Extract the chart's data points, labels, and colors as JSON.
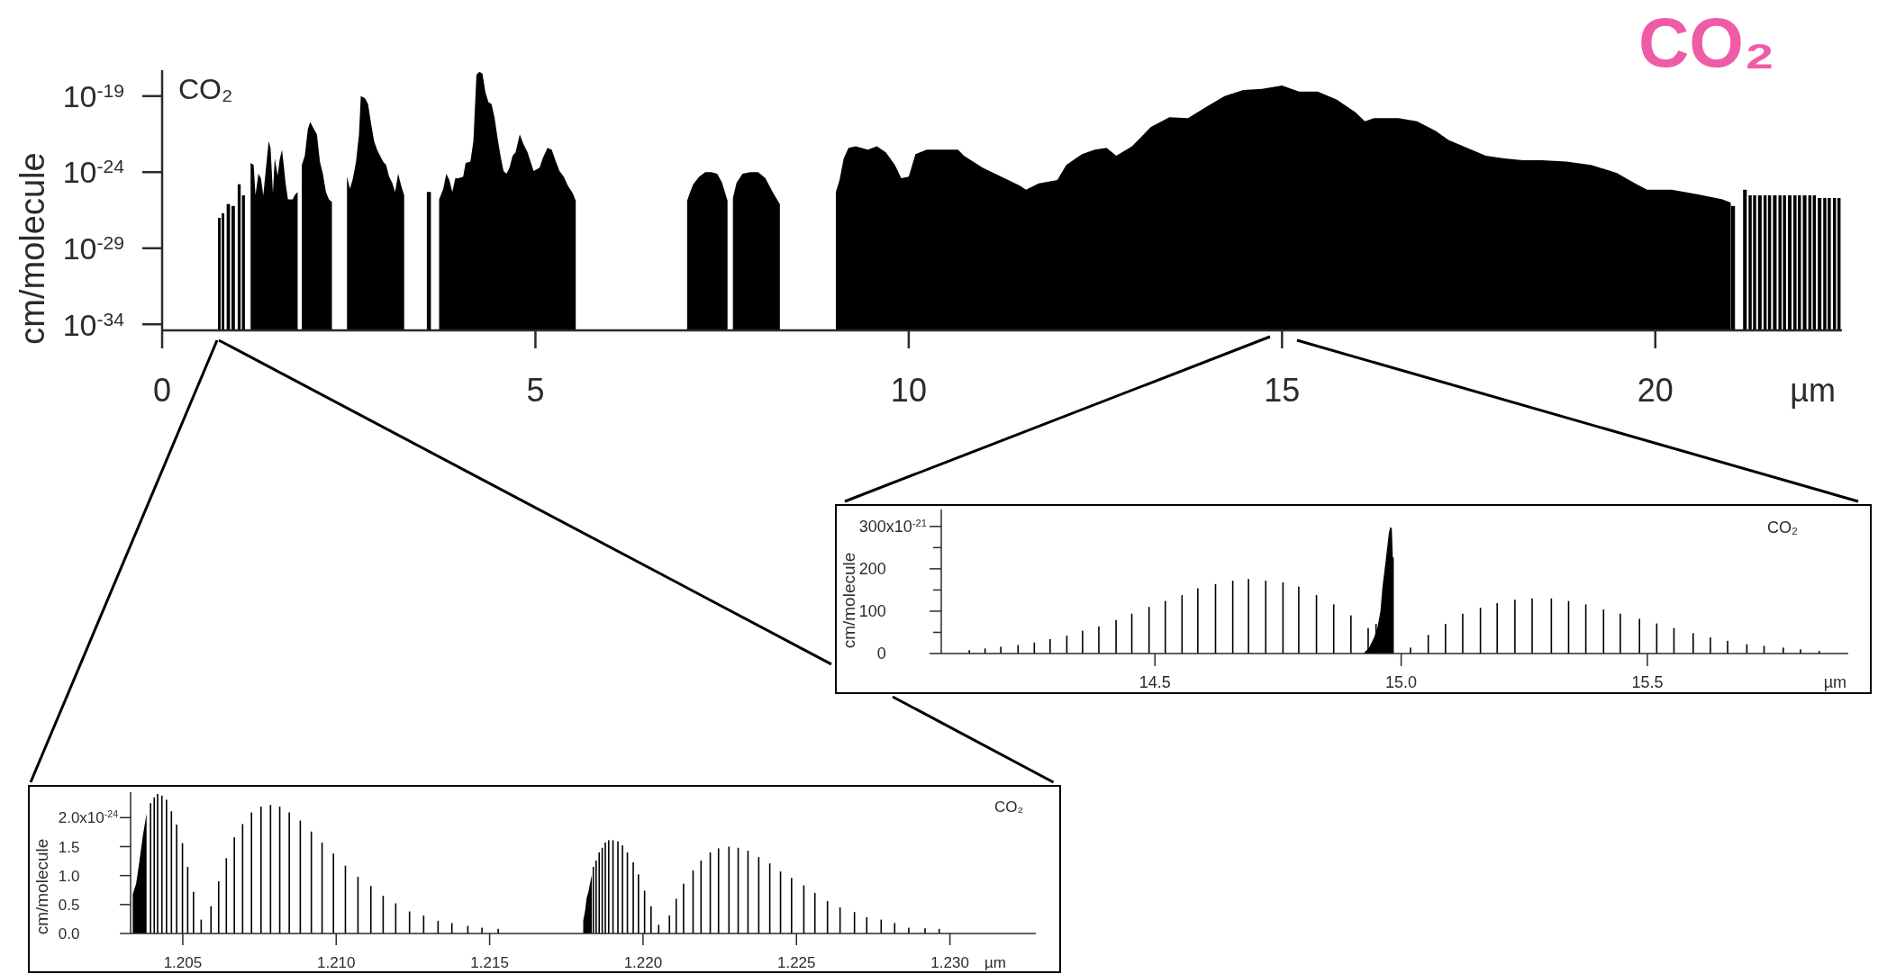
{
  "chart_data": [
    {
      "type": "area",
      "title": "CO₂",
      "xlabel": "µm",
      "ylabel": "cm/molecule",
      "annotations": [
        "CO₂"
      ],
      "log": true,
      "xlim": [
        0,
        22.5
      ],
      "xticks": [
        0,
        5,
        10,
        15,
        20
      ],
      "ylim": [
        4e-35,
        5e-18
      ],
      "yticks": [
        {
          "value": 1e-34,
          "label": "10$^{-34}$"
        },
        {
          "value": 1e-29,
          "label": "10$^{-29}$"
        },
        {
          "value": 1e-24,
          "label": "10$^{-24}$"
        },
        {
          "value": 1e-19,
          "label": "10$^{-19}$"
        }
      ],
      "series": [
        {
          "color": "#000000",
          "x": [
            1.185,
            1.226,
            1.25,
            1.29,
            1.323,
            1.355,
            1.387,
            1.427,
            1.452,
            1.484,
            1.508,
            1.548,
            1.573,
            1.605,
            1.629,
            1.653,
            1.685,
            1.75,
            1.774,
            1.815,
            1.843,
            1.871,
            1.911,
            1.952,
            1.984,
            2.032,
            2.073,
            2.113,
            2.153,
            2.194,
            2.234,
            2.274,
            2.37,
            2.476,
            2.516,
            2.556,
            2.597,
            2.637,
            2.661,
            2.718,
            2.758,
            2.798,
            2.839,
            2.879,
            2.919,
            2.96,
            3.0,
            3.04,
            3.081,
            3.121,
            3.161,
            3.202,
            3.242,
            3.45,
            3.71,
            3.766,
            3.806,
            3.847,
            3.887,
            3.927,
            3.968,
            4.032,
            4.065,
            4.129,
            4.169,
            4.21,
            4.25,
            4.29,
            4.331,
            4.371,
            4.411,
            4.452,
            4.492,
            4.532,
            4.573,
            4.613,
            4.653,
            4.694,
            4.734,
            4.79,
            4.839,
            4.895,
            4.935,
            4.976,
            5.056,
            5.097,
            5.161,
            5.218,
            5.274,
            5.323,
            5.379,
            5.435,
            5.5,
            5.54,
            6.3,
            7.032,
            7.073,
            7.113,
            7.194,
            7.274,
            7.355,
            7.435,
            7.5,
            7.573,
            7.61,
            7.645,
            7.694,
            7.774,
            7.879,
            7.984,
            8.081,
            8.177,
            8.274,
            8.6,
            9.024,
            9.073,
            9.129,
            9.194,
            9.29,
            9.452,
            9.573,
            9.694,
            9.815,
            9.9,
            10.0,
            10.09,
            10.24,
            10.66,
            10.74,
            10.99,
            11.24,
            11.49,
            11.57,
            11.74,
            11.99,
            12.11,
            12.32,
            12.49,
            12.65,
            12.78,
            12.99,
            13.24,
            13.49,
            13.74,
            13.99,
            14.23,
            14.48,
            14.73,
            15.0,
            15.23,
            15.48,
            15.73,
            15.98,
            16.11,
            16.23,
            16.56,
            16.81,
            17.06,
            17.23,
            17.48,
            17.73,
            17.98,
            18.23,
            18.48,
            18.81,
            19.14,
            19.48,
            19.73,
            19.89,
            20.22,
            20.56,
            20.89,
            21.01
          ],
          "values": [
            4e-24,
            3e-24,
            3e-26,
            8e-25,
            4e-25,
            3e-26,
            1.2e-24,
            1.1e-22,
            4e-23,
            4e-26,
            8e-24,
            6e-25,
            6e-24,
            3e-23,
            3e-24,
            2e-25,
            1.6e-26,
            1.6e-26,
            3e-26,
            5e-26,
            null,
            3e-24,
            1.2e-23,
            7e-22,
            2e-21,
            7e-22,
            3e-22,
            5e-24,
            8e-25,
            5e-26,
            1.6e-26,
            1.1e-26,
            null,
            5e-25,
            8e-26,
            4e-25,
            5e-24,
            3e-22,
            1e-19,
            7e-20,
            3e-20,
            1.7e-21,
            1.1e-22,
            3e-23,
            1.2e-23,
            5e-24,
            3e-24,
            5e-25,
            2e-25,
            5e-26,
            8e-25,
            1.3e-25,
            3e-26,
            null,
            1.6e-26,
            8e-26,
            8e-25,
            3e-25,
            5e-26,
            4e-25,
            4e-25,
            5e-25,
            4e-24,
            5e-24,
            1.1e-22,
            2.5e-18,
            4e-18,
            3e-18,
            1.7e-19,
            4e-20,
            3e-20,
            4e-21,
            1.8e-22,
            1.2e-23,
            1.2e-24,
            8e-25,
            2e-24,
            1.2e-23,
            2e-23,
            3e-22,
            7e-23,
            2e-23,
            5e-24,
            1.2e-24,
            2e-24,
            8e-24,
            4e-23,
            3e-23,
            5e-24,
            1.2e-24,
            5e-25,
            1.3e-25,
            4e-26,
            1.3e-26,
            null,
            1.3e-26,
            5e-26,
            1.6e-25,
            5e-25,
            1e-24,
            1e-24,
            8e-25,
            2e-25,
            1.3e-26,
            null,
            2e-26,
            2e-25,
            8e-25,
            1e-24,
            1e-24,
            4e-25,
            5e-26,
            8e-27,
            null,
            5e-26,
            3e-25,
            8e-24,
            4e-23,
            5e-23,
            3e-23,
            5e-23,
            2e-23,
            3e-24,
            4e-25,
            5e-25,
            1.5e-23,
            3e-23,
            3e-23,
            1.2e-23,
            2e-24,
            5e-25,
            1.3e-25,
            7e-26,
            1.8e-25,
            3e-25,
            3e-24,
            1.5e-23,
            3e-23,
            4e-23,
            1.2e-23,
            5e-23,
            9e-22,
            4e-21,
            3.5e-21,
            2e-20,
            1e-19,
            2.5e-19,
            3e-19,
            5e-19,
            2e-19,
            2e-19,
            6e-20,
            9e-21,
            2.2e-21,
            3.5e-21,
            3.5e-21,
            2.2e-21,
            5e-22,
            1.3e-22,
            4e-23,
            1.2e-23,
            8e-24,
            6e-24,
            6e-24,
            5e-24,
            3e-24,
            9e-25,
            1.8e-25,
            7e-26,
            7e-26,
            3.5e-26,
            1.7e-26,
            1e-26
          ]
        },
        {
          "type": "bar",
          "color": "#000000",
          "x": [
            0.766,
            0.815,
            0.887,
            0.952,
            1.032,
            1.089,
            3.573,
            21.04,
            21.2,
            21.27,
            21.33,
            21.4,
            21.47,
            21.53,
            21.6,
            21.67,
            21.73,
            21.8,
            21.87,
            21.93,
            22.0,
            22.07,
            22.13,
            22.2,
            22.27,
            22.33,
            22.4,
            22.46
          ],
          "values": [
            1e-27,
            2e-27,
            8e-27,
            6e-27,
            1.6e-25,
            3e-26,
            5e-26,
            6e-27,
            7e-26,
            3e-26,
            3e-26,
            3e-26,
            3e-26,
            3e-26,
            3e-26,
            3e-26,
            3e-26,
            3e-26,
            3e-26,
            3e-26,
            3e-26,
            3e-26,
            3e-26,
            2e-26,
            2e-26,
            2e-26,
            2e-26,
            2e-26
          ]
        }
      ]
    },
    {
      "type": "bar",
      "xlabel": "µm",
      "ylabel": "cm/molecule",
      "annotations": [
        "CO₂",
        "x10$^{-21}$"
      ],
      "xlim": [
        14.066,
        15.908
      ],
      "xticks": [
        14.5,
        {
          "value": 15,
          "label": "15.0"
        },
        15.5
      ],
      "ylim": [
        0,
        340
      ],
      "yticks": [
        0,
        {
          "value": 50,
          "label": null
        },
        100,
        {
          "value": 150,
          "label": null
        },
        200,
        {
          "value": 250,
          "label": null
        },
        300
      ],
      "series": [
        {
          "color": "#000000",
          "x": [
            14.123,
            14.155,
            14.187,
            14.222,
            14.255,
            14.287,
            14.321,
            14.353,
            14.386,
            14.421,
            14.453,
            14.488,
            14.521,
            14.555,
            14.587,
            14.623,
            14.658,
            14.69,
            14.725,
            14.76,
            14.792,
            14.828,
            14.863,
            14.898,
            14.933,
            14.949,
            15.019,
            15.055,
            15.09,
            15.125,
            15.161,
            15.195,
            15.231,
            15.266,
            15.305,
            15.34,
            15.375,
            15.411,
            15.445,
            15.484,
            15.519,
            15.554,
            15.593,
            15.628,
            15.663,
            15.702,
            15.737,
            15.776,
            15.811,
            15.849
          ],
          "values": [
            8,
            12,
            16,
            20,
            26,
            34,
            42,
            54,
            64,
            79,
            94,
            110,
            124,
            138,
            154,
            164,
            172,
            176,
            172,
            168,
            158,
            138,
            116,
            90,
            60,
            70,
            14,
            44,
            70,
            94,
            108,
            119,
            127,
            130,
            130,
            124,
            116,
            104,
            94,
            82,
            71,
            60,
            48,
            38,
            30,
            22,
            18,
            14,
            10,
            6
          ]
        },
        {
          "type": "area",
          "color": "#000000",
          "x": [
            14.925,
            14.935,
            14.945,
            14.952,
            14.958,
            14.962,
            14.967,
            14.971,
            14.975,
            14.978,
            14.981,
            14.983,
            14.985
          ],
          "values": [
            2,
            14,
            38,
            62,
            101,
            157,
            204,
            244,
            284,
            299,
            295,
            228,
            225
          ]
        }
      ]
    },
    {
      "type": "bar",
      "xlabel": "µm",
      "ylabel": "cm/molecule",
      "annotations": [
        "CO₂",
        "x10$^{-24}$"
      ],
      "xlim": [
        1.2033,
        1.2328
      ],
      "xticks": [
        1.205,
        {
          "value": 1.21,
          "label": "1.210"
        },
        1.215,
        {
          "value": 1.22,
          "label": "1.220"
        },
        1.225,
        {
          "value": 1.23,
          "label": "1.230"
        }
      ],
      "ylim": [
        0,
        2.44
      ],
      "yticks": [
        {
          "value": 0,
          "label": "0.0"
        },
        0.5,
        {
          "value": 1,
          "label": "1.0"
        },
        1.5,
        {
          "value": 2,
          "label": "2.0"
        }
      ],
      "series": [
        {
          "color": "#000000",
          "x": [
            1.20395,
            1.20407,
            1.20418,
            1.20432,
            1.20447,
            1.20463,
            1.2048,
            1.20499,
            1.20516,
            1.20535,
            1.2056,
            1.20592,
            1.20617,
            1.20642,
            1.20668,
            1.20695,
            1.20724,
            1.20755,
            1.20786,
            1.20816,
            1.20847,
            1.20883,
            1.20919,
            1.20954,
            1.20991,
            1.2103,
            1.21071,
            1.21113,
            1.21153,
            1.21194,
            1.21239,
            1.21285,
            1.21332,
            1.21377,
            1.21429,
            1.21475,
            1.21528,
            1.21838,
            1.21847,
            1.21857,
            1.21867,
            1.21877,
            1.21888,
            1.21902,
            1.21918,
            1.21933,
            1.21949,
            1.21968,
            1.21985,
            1.22005,
            1.22026,
            1.22051,
            1.22086,
            1.22108,
            1.22132,
            1.22163,
            1.22189,
            1.22219,
            1.22246,
            1.2228,
            1.2231,
            1.22342,
            1.22377,
            1.22413,
            1.22448,
            1.22484,
            1.22524,
            1.2256,
            1.22601,
            1.22642,
            1.22689,
            1.22729,
            1.22776,
            1.2282,
            1.22866,
            1.22919,
            1.22965
          ],
          "values": [
            2.25,
            2.35,
            2.41,
            2.38,
            2.31,
            2.11,
            1.88,
            1.56,
            1.15,
            0.72,
            0.24,
            0.47,
            0.9,
            1.3,
            1.66,
            1.89,
            2.09,
            2.19,
            2.22,
            2.19,
            2.09,
            1.95,
            1.76,
            1.57,
            1.38,
            1.17,
            0.98,
            0.82,
            0.65,
            0.52,
            0.38,
            0.31,
            0.22,
            0.18,
            0.13,
            0.1,
            0.08,
            1.15,
            1.26,
            1.4,
            1.48,
            1.57,
            1.61,
            1.61,
            1.59,
            1.52,
            1.4,
            1.23,
            1.02,
            0.74,
            0.47,
            0.15,
            0.31,
            0.6,
            0.86,
            1.09,
            1.26,
            1.4,
            1.47,
            1.5,
            1.48,
            1.43,
            1.32,
            1.21,
            1.07,
            0.96,
            0.83,
            0.7,
            0.56,
            0.45,
            0.37,
            0.28,
            0.24,
            0.18,
            0.1,
            0.09,
            0.08
          ]
        },
        {
          "type": "area",
          "color": "#000000",
          "x": [
            1.20337,
            1.20348,
            1.20359,
            1.2037,
            1.20382
          ],
          "values": [
            0.68,
            0.86,
            1.26,
            1.69,
            2.07
          ]
        },
        {
          "type": "area",
          "color": "#000000",
          "x": [
            1.21805,
            1.21811,
            1.21816,
            1.21822,
            1.21827,
            1.21833
          ],
          "values": [
            0.22,
            0.39,
            0.61,
            0.72,
            0.86,
            1.01
          ]
        }
      ]
    }
  ]
}
